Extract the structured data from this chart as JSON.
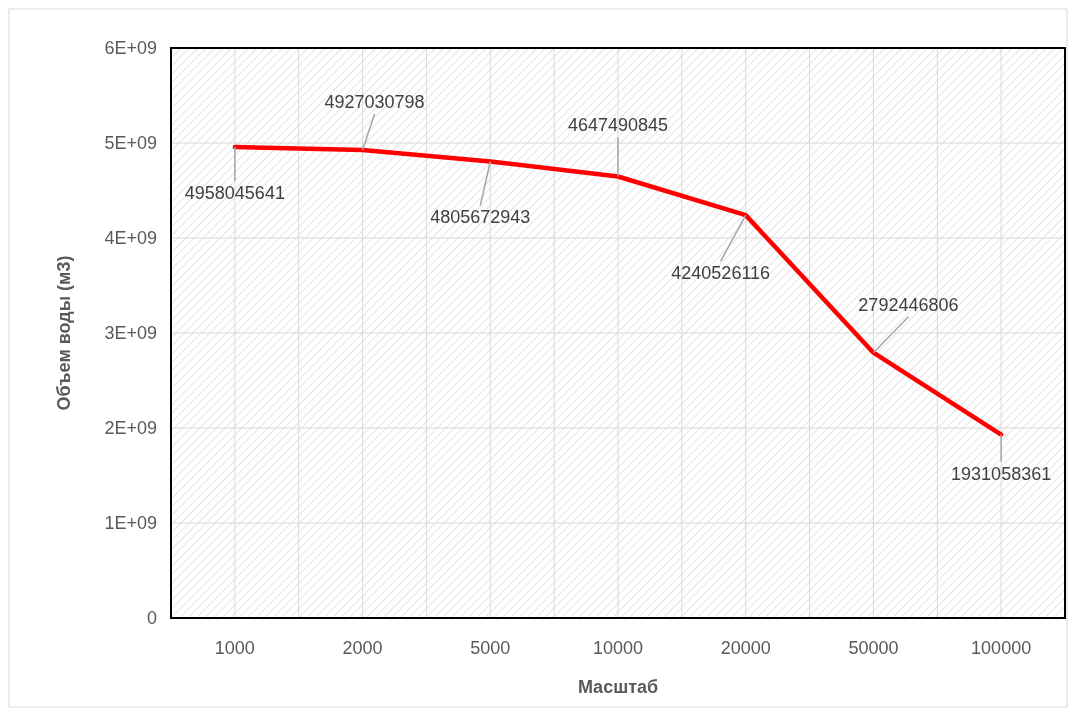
{
  "chart_data": {
    "type": "line",
    "xlabel": "Масштаб",
    "ylabel": "Объем воды (м3)",
    "categories": [
      "1000",
      "2000",
      "5000",
      "10000",
      "20000",
      "50000",
      "100000"
    ],
    "series": [
      {
        "color": "#ff0000",
        "values": [
          4958045641,
          4927030798,
          4805672943,
          4647490845,
          4240526116,
          2792446806,
          1931058361
        ]
      }
    ],
    "ylim": [
      0,
      6000000000
    ],
    "yticks": [
      0,
      {
        "value": 1000000000,
        "label": "1E+09"
      },
      {
        "value": 2000000000,
        "label": "2E+09"
      },
      {
        "value": 3000000000,
        "label": "3E+09"
      },
      {
        "value": 4000000000,
        "label": "4E+09"
      },
      {
        "value": 5000000000,
        "label": "5E+09"
      },
      {
        "value": 6000000000,
        "label": "6E+09"
      }
    ],
    "grid": true,
    "data_labels": true,
    "marker": "none",
    "line_style": "solid"
  }
}
